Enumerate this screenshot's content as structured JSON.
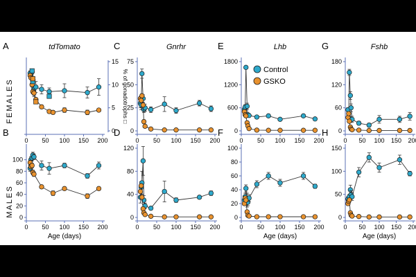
{
  "row_labels": {
    "females": "FEMALES",
    "males": "MALES"
  },
  "legend": {
    "control_label": "Control",
    "gsko_label": "GSKO"
  },
  "colors": {
    "control": "#2ea9cb",
    "gsko": "#e8922e",
    "axis": "#5a6fb4",
    "line": "#333333",
    "stroke": "#1a1a1a"
  },
  "chart_data": [
    {
      "id": "A",
      "panel_letter": "A",
      "type": "line",
      "title": "tdTomato",
      "title_italic": true,
      "xlabel": "",
      "ylabel": "",
      "xlim": [
        0,
        200
      ],
      "ylim": [
        0,
        150
      ],
      "x_ticks": [
        "0",
        "50",
        "100",
        "150",
        "200"
      ],
      "x_tick_values": [
        0,
        50,
        100,
        150,
        200
      ],
      "y_ticks": [],
      "y_tick_values": [],
      "y2_label": "% of gonadotrophs □",
      "y2_ticks": [
        "0",
        "5",
        "10",
        "15"
      ],
      "y2_tick_values": [
        0,
        50,
        100,
        150
      ],
      "series": [
        {
          "name": "Control",
          "x": [
            10,
            12,
            15,
            17,
            20,
            25,
            40,
            60,
            100,
            160,
            190
          ],
          "y": [
            125,
            120,
            128,
            108,
            92,
            95,
            90,
            85,
            87,
            83,
            95
          ],
          "err": [
            5,
            5,
            5,
            8,
            18,
            12,
            10,
            8,
            15,
            12,
            18
          ]
        },
        {
          "name": "GSKO",
          "x": [
            10,
            12,
            15,
            17,
            20,
            25,
            40,
            60,
            70,
            100,
            160,
            190
          ],
          "y": [
            120,
            115,
            100,
            85,
            82,
            68,
            52,
            42,
            40,
            45,
            40,
            45
          ],
          "err": [
            3,
            3,
            5,
            5,
            5,
            4,
            4,
            4,
            4,
            5,
            5,
            3
          ]
        },
        {
          "name": "Control % of gonadotrophs",
          "marker": "square",
          "x": [
            15,
            17,
            60
          ],
          "y": [
            130,
            107,
            75
          ],
          "err": [
            0,
            0,
            0
          ]
        },
        {
          "name": "GSKO % of gonadotrophs",
          "marker": "square",
          "x": [
            17,
            25
          ],
          "y": [
            113,
            63
          ],
          "err": [
            0,
            0
          ]
        }
      ]
    },
    {
      "id": "C",
      "panel_letter": "C",
      "type": "line",
      "title": "Gnrhr",
      "title_italic": true,
      "xlabel": "",
      "ylabel": "",
      "xlim": [
        0,
        200
      ],
      "ylim": [
        0,
        75
      ],
      "x_ticks": [
        "0",
        "50",
        "100",
        "150",
        "200"
      ],
      "x_tick_values": [
        0,
        50,
        100,
        150,
        200
      ],
      "y_ticks": [
        "0",
        "25",
        "50",
        "75"
      ],
      "y_tick_values": [
        0,
        25,
        50,
        75
      ],
      "series": [
        {
          "name": "Control",
          "x": [
            8,
            10,
            12,
            15,
            17,
            20,
            35,
            70,
            100,
            160,
            190
          ],
          "y": [
            30,
            28,
            62,
            35,
            23,
            25,
            23,
            29,
            22,
            30,
            24
          ],
          "err": [
            5,
            5,
            5,
            4,
            3,
            4,
            3,
            8,
            3,
            3,
            3
          ]
        },
        {
          "name": "GSKO",
          "x": [
            8,
            10,
            12,
            15,
            17,
            20,
            35,
            70,
            100,
            160,
            190
          ],
          "y": [
            35,
            33,
            38,
            28,
            10,
            5,
            2,
            1,
            1,
            1,
            1
          ],
          "err": [
            2,
            2,
            2,
            2,
            2,
            1,
            1,
            1,
            1,
            1,
            1
          ]
        }
      ]
    },
    {
      "id": "E",
      "panel_letter": "E",
      "type": "line",
      "title": "Lhb",
      "title_italic": true,
      "xlabel": "",
      "ylabel": "",
      "xlim": [
        0,
        200
      ],
      "ylim": [
        0,
        1800
      ],
      "x_ticks": [
        "0",
        "50",
        "100",
        "150",
        "200"
      ],
      "x_tick_values": [
        0,
        50,
        100,
        150,
        200
      ],
      "y_ticks": [
        "0",
        "600",
        "1200",
        "1800"
      ],
      "y_tick_values": [
        0,
        600,
        1200,
        1800
      ],
      "series": [
        {
          "name": "Control",
          "x": [
            8,
            10,
            12,
            15,
            17,
            20,
            40,
            70,
            100,
            160,
            190
          ],
          "y": [
            560,
            620,
            1650,
            640,
            420,
            400,
            360,
            390,
            300,
            390,
            310
          ],
          "err": [
            50,
            60,
            0,
            80,
            40,
            30,
            30,
            30,
            30,
            30,
            30
          ]
        },
        {
          "name": "GSKO",
          "x": [
            8,
            10,
            12,
            15,
            17,
            20,
            40,
            70,
            100,
            160,
            190
          ],
          "y": [
            500,
            420,
            390,
            210,
            130,
            60,
            20,
            15,
            15,
            15,
            15
          ],
          "err": [
            30,
            30,
            30,
            30,
            20,
            10,
            5,
            5,
            5,
            5,
            5
          ]
        }
      ]
    },
    {
      "id": "G",
      "panel_letter": "G",
      "type": "line",
      "title": "Fshb",
      "title_italic": true,
      "xlabel": "",
      "ylabel": "",
      "xlim": [
        0,
        200
      ],
      "ylim": [
        0,
        180
      ],
      "x_ticks": [
        "0",
        "50",
        "100",
        "150",
        "200"
      ],
      "x_tick_values": [
        0,
        50,
        100,
        150,
        200
      ],
      "y_ticks": [
        "0",
        "60",
        "120",
        "180"
      ],
      "y_tick_values": [
        0,
        60,
        120,
        180
      ],
      "series": [
        {
          "name": "Control",
          "x": [
            8,
            10,
            12,
            15,
            17,
            20,
            40,
            70,
            100,
            160,
            190
          ],
          "y": [
            55,
            35,
            152,
            92,
            60,
            30,
            20,
            15,
            30,
            30,
            38
          ],
          "err": [
            5,
            5,
            8,
            10,
            10,
            8,
            5,
            5,
            10,
            8,
            10
          ]
        },
        {
          "name": "GSKO",
          "x": [
            8,
            10,
            12,
            15,
            17,
            20,
            40,
            70,
            100,
            160,
            190
          ],
          "y": [
            35,
            45,
            25,
            10,
            5,
            3,
            2,
            1,
            1,
            1,
            1
          ],
          "err": [
            3,
            3,
            3,
            2,
            2,
            1,
            1,
            1,
            1,
            1,
            1
          ]
        }
      ]
    },
    {
      "id": "B",
      "panel_letter": "B",
      "type": "line",
      "title": "",
      "xlabel": "Age (days)",
      "ylabel": "",
      "xlim": [
        0,
        200
      ],
      "ylim": [
        0,
        120
      ],
      "x_ticks": [
        "0",
        "50",
        "100",
        "150",
        "200"
      ],
      "x_tick_values": [
        0,
        50,
        100,
        150,
        200
      ],
      "y_ticks": [
        "0",
        "20",
        "40",
        "60",
        "80",
        "100"
      ],
      "y_tick_values": [
        0,
        20,
        40,
        60,
        80,
        100
      ],
      "series": [
        {
          "name": "Control",
          "x": [
            10,
            12,
            15,
            17,
            20,
            40,
            60,
            100,
            160,
            190
          ],
          "y": [
            85,
            100,
            103,
            108,
            105,
            90,
            85,
            90,
            72,
            90
          ],
          "err": [
            5,
            5,
            5,
            5,
            5,
            8,
            10,
            4,
            4,
            6
          ]
        },
        {
          "name": "GSKO",
          "x": [
            10,
            12,
            15,
            17,
            20,
            40,
            70,
            100,
            160,
            190
          ],
          "y": [
            95,
            88,
            90,
            78,
            75,
            53,
            42,
            50,
            37,
            50
          ],
          "err": [
            4,
            4,
            4,
            4,
            4,
            3,
            4,
            3,
            4,
            3
          ]
        }
      ]
    },
    {
      "id": "D",
      "panel_letter": "D",
      "type": "line",
      "title": "",
      "xlabel": "",
      "ylabel": "",
      "xlim": [
        0,
        200
      ],
      "ylim": [
        0,
        120
      ],
      "x_ticks": [
        "0",
        "50",
        "100",
        "150",
        "200"
      ],
      "x_tick_values": [
        0,
        50,
        100,
        150,
        200
      ],
      "y_ticks": [
        "0",
        "40",
        "80",
        "120"
      ],
      "y_tick_values": [
        0,
        40,
        80,
        120
      ],
      "series": [
        {
          "name": "Control",
          "x": [
            8,
            10,
            12,
            15,
            17,
            20,
            35,
            70,
            100,
            160,
            190
          ],
          "y": [
            35,
            52,
            60,
            98,
            30,
            20,
            16,
            45,
            30,
            35,
            42
          ],
          "err": [
            10,
            10,
            20,
            25,
            8,
            5,
            3,
            18,
            4,
            3,
            4
          ]
        },
        {
          "name": "GSKO",
          "x": [
            8,
            10,
            12,
            15,
            17,
            20,
            35,
            70,
            100,
            160,
            190
          ],
          "y": [
            45,
            55,
            35,
            15,
            8,
            5,
            2,
            1,
            1,
            1,
            1
          ],
          "err": [
            3,
            3,
            3,
            3,
            2,
            1,
            1,
            1,
            1,
            1,
            1
          ]
        }
      ]
    },
    {
      "id": "F",
      "panel_letter": "F",
      "type": "line",
      "title": "",
      "xlabel": "Age (days)",
      "ylabel": "",
      "xlim": [
        0,
        200
      ],
      "ylim": [
        0,
        100
      ],
      "x_ticks": [
        "0",
        "50",
        "100",
        "150",
        "200"
      ],
      "x_tick_values": [
        0,
        50,
        100,
        150,
        200
      ],
      "y_ticks": [
        "0",
        "20",
        "40",
        "60",
        "80",
        "100"
      ],
      "y_tick_values": [
        0,
        20,
        40,
        60,
        80,
        100
      ],
      "series": [
        {
          "name": "Control",
          "x": [
            8,
            10,
            12,
            15,
            17,
            20,
            40,
            70,
            100,
            160,
            190
          ],
          "y": [
            25,
            30,
            42,
            25,
            22,
            28,
            48,
            60,
            50,
            60,
            45
          ],
          "err": [
            5,
            5,
            5,
            10,
            5,
            5,
            5,
            5,
            5,
            5,
            3
          ]
        },
        {
          "name": "GSKO",
          "x": [
            8,
            10,
            12,
            15,
            17,
            20,
            40,
            70,
            100,
            160,
            190
          ],
          "y": [
            20,
            28,
            25,
            8,
            3,
            2,
            1,
            1,
            1,
            1,
            1
          ],
          "err": [
            2,
            2,
            2,
            2,
            1,
            1,
            1,
            1,
            1,
            1,
            1
          ]
        }
      ]
    },
    {
      "id": "H",
      "panel_letter": "H",
      "type": "line",
      "title": "",
      "xlabel": "Age (days)",
      "ylabel": "",
      "xlim": [
        0,
        200
      ],
      "ylim": [
        0,
        150
      ],
      "x_ticks": [
        "0",
        "50",
        "100",
        "150",
        "200"
      ],
      "x_tick_values": [
        0,
        50,
        100,
        150,
        200
      ],
      "y_ticks": [
        "0",
        "50",
        "100",
        "150"
      ],
      "y_tick_values": [
        0,
        50,
        100,
        150
      ],
      "series": [
        {
          "name": "Control",
          "x": [
            8,
            10,
            12,
            15,
            17,
            20,
            40,
            70,
            100,
            160,
            190
          ],
          "y": [
            40,
            35,
            45,
            60,
            50,
            45,
            98,
            130,
            108,
            125,
            95
          ],
          "err": [
            5,
            5,
            5,
            10,
            8,
            8,
            10,
            10,
            10,
            10,
            5
          ]
        },
        {
          "name": "GSKO",
          "x": [
            8,
            10,
            12,
            15,
            17,
            20,
            40,
            70,
            100,
            160,
            190
          ],
          "y": [
            30,
            35,
            38,
            10,
            5,
            3,
            2,
            1,
            1,
            1,
            1
          ],
          "err": [
            3,
            3,
            3,
            2,
            1,
            1,
            1,
            1,
            1,
            1,
            1
          ]
        }
      ]
    }
  ]
}
